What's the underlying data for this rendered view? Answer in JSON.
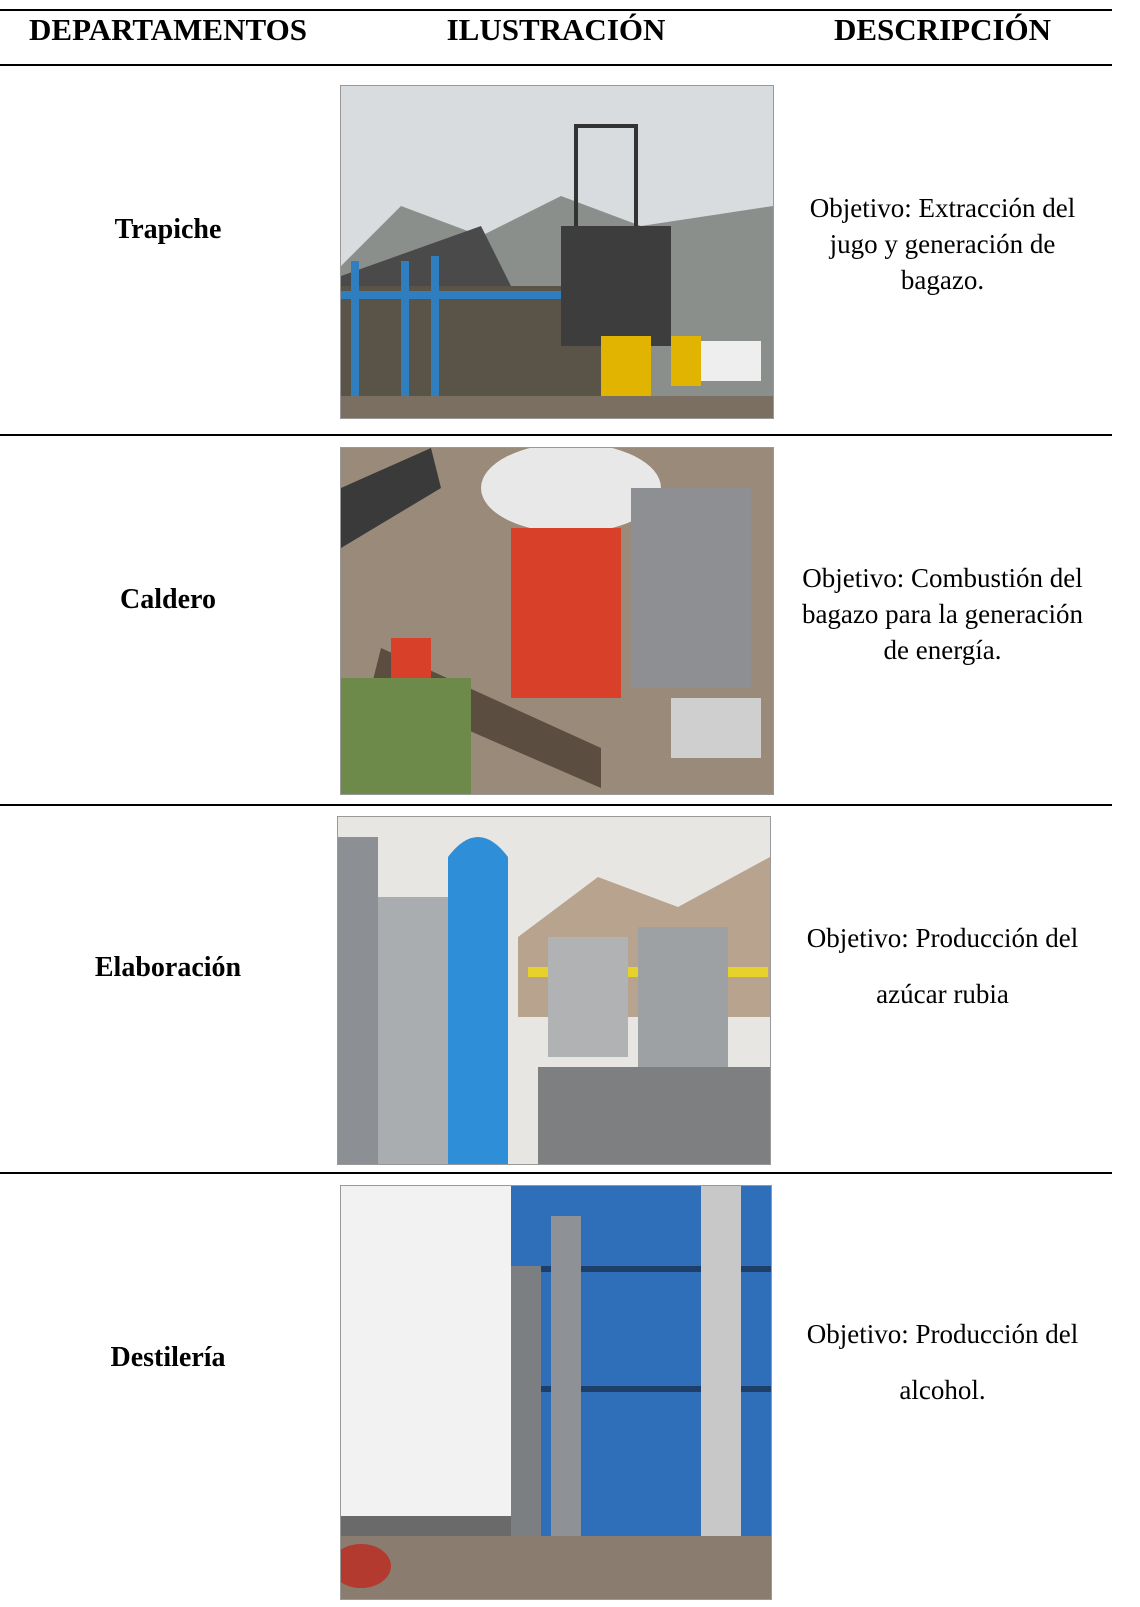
{
  "table": {
    "header": [
      "DEPARTAMENTOS",
      "ILUSTRACIÓN",
      "DESCRIPCIÓN"
    ],
    "rows": [
      {
        "department": "Trapiche",
        "description": [
          "Objetivo: Extracción del",
          "jugo y generación de",
          "bagazo."
        ]
      },
      {
        "department": "Caldero",
        "description": [
          "Objetivo: Combustión del",
          "bagazo para la generación",
          "de energía."
        ]
      },
      {
        "department": "Elaboración",
        "description": [
          "Objetivo: Producción del",
          "azúcar rubia"
        ]
      },
      {
        "department": "Destilería",
        "description": [
          "Objetivo: Producción del",
          "alcohol."
        ]
      }
    ]
  }
}
